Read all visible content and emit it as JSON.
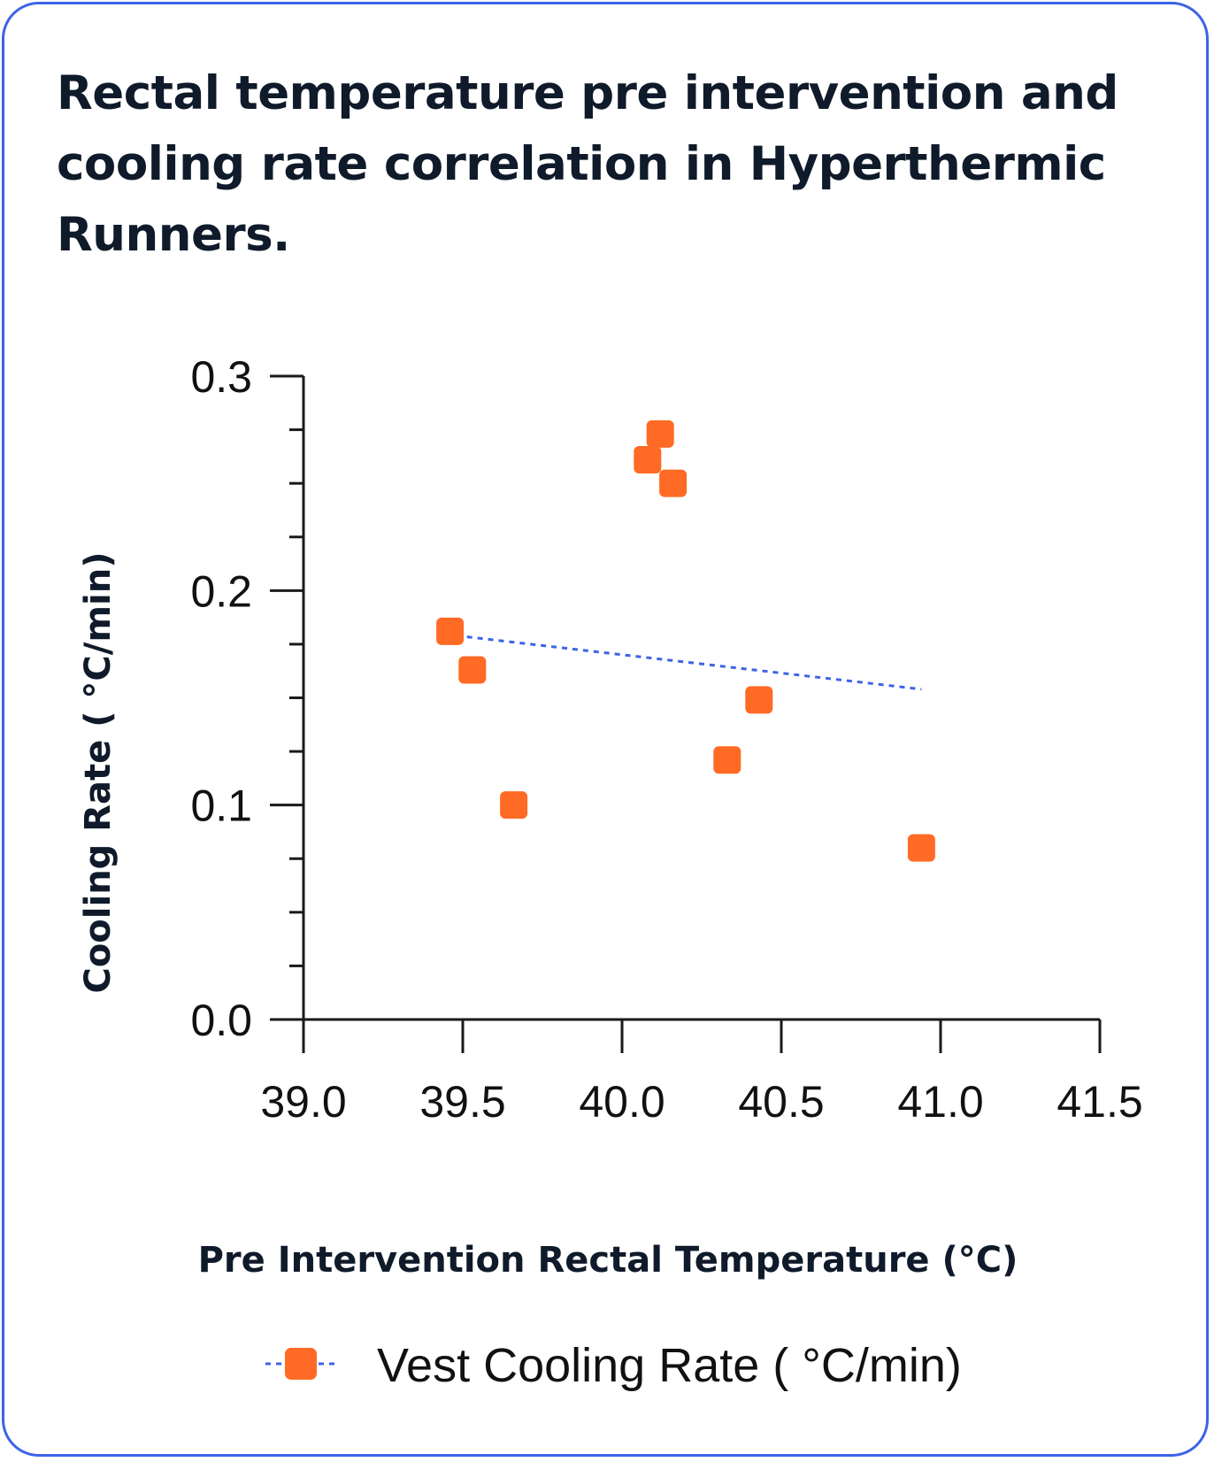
{
  "chart_data": {
    "type": "scatter",
    "title": "Rectal temperature pre intervention and cooling rate correlation in Hyperthermic Runners.",
    "xlabel": "Pre Intervention Rectal Temperature (°C)",
    "ylabel": "Cooling Rate ( °C/min)",
    "xlim": [
      39.0,
      41.5
    ],
    "ylim": [
      0.0,
      0.3
    ],
    "x_ticks": [
      "39.0",
      "39.5",
      "40.0",
      "40.5",
      "41.0",
      "41.5"
    ],
    "y_ticks": [
      "0.0",
      "0.1",
      "0.2",
      "0.3"
    ],
    "series": [
      {
        "name": "Vest Cooling Rate ( °C/min)",
        "color": "#ff6a24",
        "marker": "rounded-square",
        "x": [
          39.46,
          39.53,
          39.66,
          40.08,
          40.12,
          40.16,
          40.33,
          40.43,
          40.94
        ],
        "y": [
          0.181,
          0.163,
          0.1,
          0.261,
          0.273,
          0.25,
          0.121,
          0.149,
          0.08
        ]
      }
    ],
    "trendline": {
      "color": "#3d63e8",
      "style": "dotted",
      "x": [
        39.48,
        40.94
      ],
      "y": [
        0.179,
        0.154
      ]
    },
    "legend": {
      "label": "Vest Cooling Rate ( °C/min)",
      "placement": "bottom"
    }
  }
}
